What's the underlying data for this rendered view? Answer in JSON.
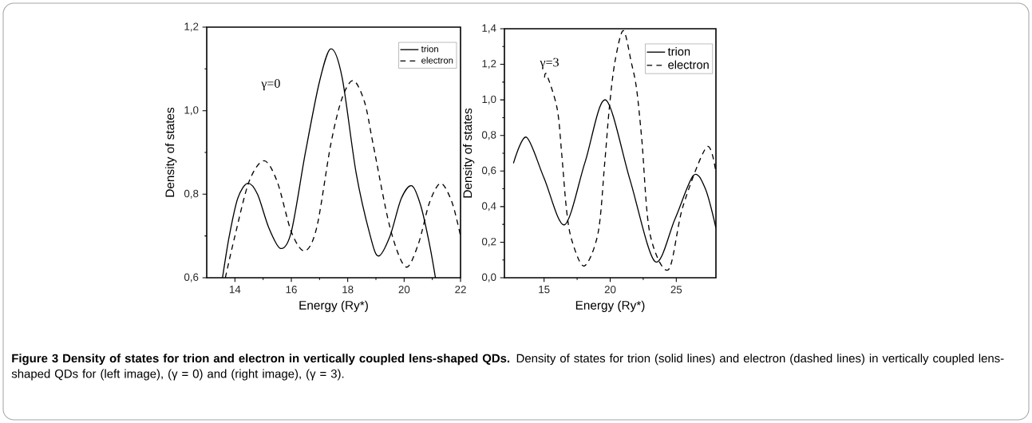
{
  "chart_data": [
    {
      "type": "line",
      "xlabel": "Energy (Ry*)",
      "ylabel": "Density of states",
      "xlim": [
        13,
        22
      ],
      "ylim": [
        0.6,
        1.2
      ],
      "xticks": [
        14,
        16,
        18,
        20,
        22
      ],
      "yticks": [
        {
          "value": 0.6,
          "label": "0,6"
        },
        {
          "value": 0.8,
          "label": "0,8"
        },
        {
          "value": 1.0,
          "label": "1,0"
        },
        {
          "value": 1.2,
          "label": "1,2"
        }
      ],
      "legend": "top right",
      "grid": false,
      "annotations": [
        "γ=0",
        "**Figure 3 Density of states for trion and electron in vertically coupled lens-shaped QDs.** Density of states for trion (solid lines) and electron (dashed lines) in vertically coupled lens-shaped QDs for (left image), (γ = 0) and (right image), (γ = 3)."
      ],
      "series": [
        {
          "name": "trion",
          "color": "#000000",
          "line_style": "solid",
          "x": [
            13.56,
            13.8,
            14.1,
            14.45,
            14.8,
            15.2,
            15.62,
            16.0,
            16.5,
            17.0,
            17.4,
            17.8,
            18.3,
            18.8,
            19.09,
            19.5,
            19.9,
            20.28,
            20.6,
            20.9,
            21.11
          ],
          "values": [
            0.6,
            0.7,
            0.79,
            0.826,
            0.8,
            0.72,
            0.67,
            0.71,
            0.9,
            1.07,
            1.148,
            1.08,
            0.85,
            0.7,
            0.652,
            0.7,
            0.79,
            0.82,
            0.77,
            0.68,
            0.6
          ]
        },
        {
          "name": "electron",
          "color": "#000000",
          "line_style": "dashed",
          "x": [
            13.66,
            14.0,
            14.5,
            15.03,
            15.5,
            16.0,
            16.47,
            16.9,
            17.4,
            17.8,
            18.2,
            18.6,
            18.9,
            19.5,
            20.05,
            20.5,
            20.9,
            21.3,
            21.7,
            22.0
          ],
          "values": [
            0.6,
            0.7,
            0.83,
            0.88,
            0.83,
            0.71,
            0.664,
            0.72,
            0.92,
            1.03,
            1.072,
            1.02,
            0.92,
            0.72,
            0.626,
            0.68,
            0.78,
            0.826,
            0.78,
            0.7
          ]
        }
      ]
    },
    {
      "type": "line",
      "xlabel": "Energy (Ry*)",
      "ylabel": "Density of states",
      "xlim": [
        12,
        28
      ],
      "ylim": [
        0,
        1.4
      ],
      "xticks": [
        15,
        20,
        25
      ],
      "yticks": [
        {
          "value": 0,
          "label": "0,0"
        },
        {
          "value": 0.2,
          "label": "0,2"
        },
        {
          "value": 0.4,
          "label": "0,4"
        },
        {
          "value": 0.6,
          "label": "0,6"
        },
        {
          "value": 0.8,
          "label": "0,8"
        },
        {
          "value": 1.0,
          "label": "1,0"
        },
        {
          "value": 1.2,
          "label": "1,2"
        },
        {
          "value": 1.4,
          "label": "1,4"
        }
      ],
      "legend": "top right",
      "grid": false,
      "annotations": [
        "γ=3"
      ],
      "series": [
        {
          "name": "trion",
          "color": "#000000",
          "line_style": "solid",
          "x": [
            12.68,
            13.66,
            15.0,
            16.55,
            18.1,
            19.65,
            21.5,
            23.38,
            24.9,
            26.3,
            27.2,
            28.0
          ],
          "values": [
            0.643,
            0.79,
            0.56,
            0.298,
            0.65,
            1.0,
            0.55,
            0.092,
            0.33,
            0.575,
            0.5,
            0.28
          ]
        },
        {
          "name": "electron",
          "color": "#000000",
          "line_style": "dashed",
          "x": [
            15.03,
            15.21,
            15.99,
            16.34,
            16.7,
            17.1,
            18.03,
            19.08,
            19.58,
            19.93,
            20.35,
            20.99,
            21.6,
            22.0,
            22.4,
            23.0,
            24.4,
            25.5,
            27.3,
            28.0
          ],
          "values": [
            1.125,
            1.14,
            0.95,
            0.69,
            0.38,
            0.21,
            0.066,
            0.25,
            0.64,
            0.95,
            1.21,
            1.39,
            1.21,
            1.06,
            0.77,
            0.25,
            0.045,
            0.4,
            0.735,
            0.59
          ]
        }
      ]
    }
  ]
}
